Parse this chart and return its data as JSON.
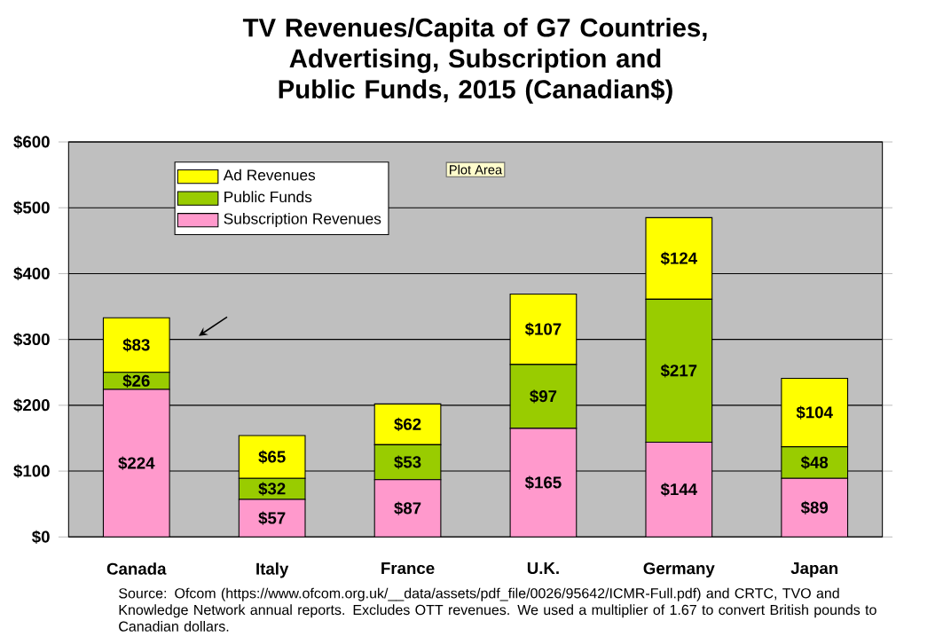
{
  "chart_data": {
    "type": "bar",
    "stacked": true,
    "title": "TV Revenues/Capita of G7 Countries, Advertising, Subscription and Public Funds, 2015 (Canadian$)",
    "categories": [
      "Canada",
      "Italy",
      "France",
      "U.K.",
      "Germany",
      "Japan"
    ],
    "series": [
      {
        "name": "Subscription Revenues",
        "color": "#ff99cc",
        "values": [
          224,
          57,
          87,
          165,
          144,
          89
        ],
        "value_labels": [
          "$224",
          "$57",
          "$87",
          "$165",
          "$144",
          "$89"
        ]
      },
      {
        "name": "Public Funds",
        "color": "#99cc00",
        "values": [
          26,
          32,
          53,
          97,
          217,
          48
        ],
        "value_labels": [
          "$26",
          "$32",
          "$53",
          "$97",
          "$217",
          "$48"
        ]
      },
      {
        "name": "Ad Revenues",
        "color": "#ffff00",
        "values": [
          83,
          65,
          62,
          107,
          124,
          104
        ],
        "value_labels": [
          "$83",
          "$65",
          "$62",
          "$107",
          "$124",
          "$104"
        ]
      }
    ],
    "ylim": [
      0,
      600
    ],
    "yticks": [
      {
        "value": 0,
        "label": "$0"
      },
      {
        "value": 100,
        "label": "$100"
      },
      {
        "value": 200,
        "label": "$200"
      },
      {
        "value": 300,
        "label": "$300"
      },
      {
        "value": 400,
        "label": "$400"
      },
      {
        "value": 500,
        "label": "$500"
      },
      {
        "value": 600,
        "label": "$600"
      }
    ],
    "grid": "y",
    "legend": "top left",
    "annotations": [
      "Source: Ofcom (https://www.ofcom.org.uk/__data/assets/pdf_file/0026/95642/ICMR-Full.pdf) and CRTC, TVO and Knowledge Network annual reports. Excludes OTT revenues. We used a multiplier of 1.67 to convert British pounds to Canadian dollars.",
      "Plot Area"
    ]
  }
}
